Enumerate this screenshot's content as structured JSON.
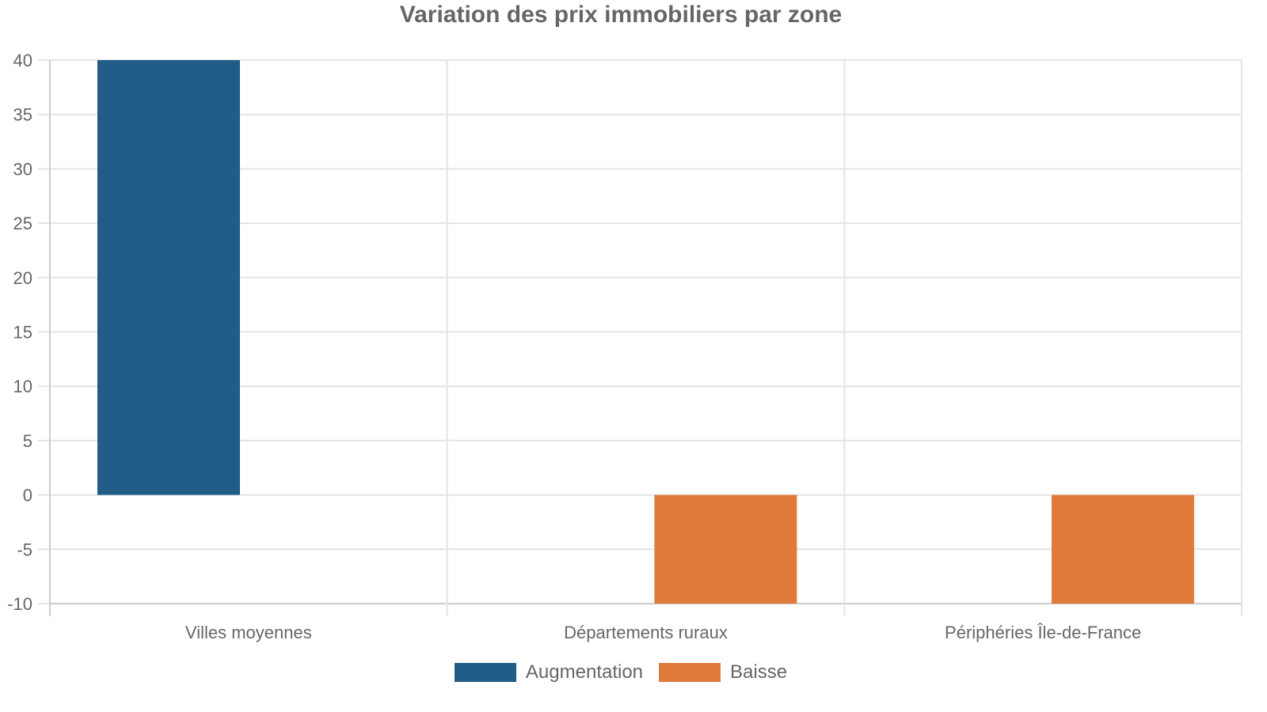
{
  "title": "Variation des prix immobiliers par zone",
  "legend": [
    {
      "label": "Augmentation",
      "color": "#215d86"
    },
    {
      "label": "Baisse",
      "color": "#e07b3b"
    }
  ],
  "chart_data": {
    "type": "bar",
    "title": "Variation des prix immobiliers par zone",
    "xlabel": "",
    "ylabel": "",
    "categories": [
      "Villes moyennes",
      "Départements ruraux",
      "Périphéries Île-de-France"
    ],
    "series": [
      {
        "name": "Augmentation",
        "color": "#215d86",
        "values": [
          40,
          0,
          0
        ]
      },
      {
        "name": "Baisse",
        "color": "#e07b3b",
        "values": [
          0,
          -10,
          -10
        ]
      }
    ],
    "ylim": [
      -10,
      40
    ],
    "yticks": [
      40,
      35,
      30,
      25,
      20,
      15,
      10,
      5,
      0,
      -5,
      -10
    ],
    "grid": true,
    "legend_position": "bottom"
  }
}
